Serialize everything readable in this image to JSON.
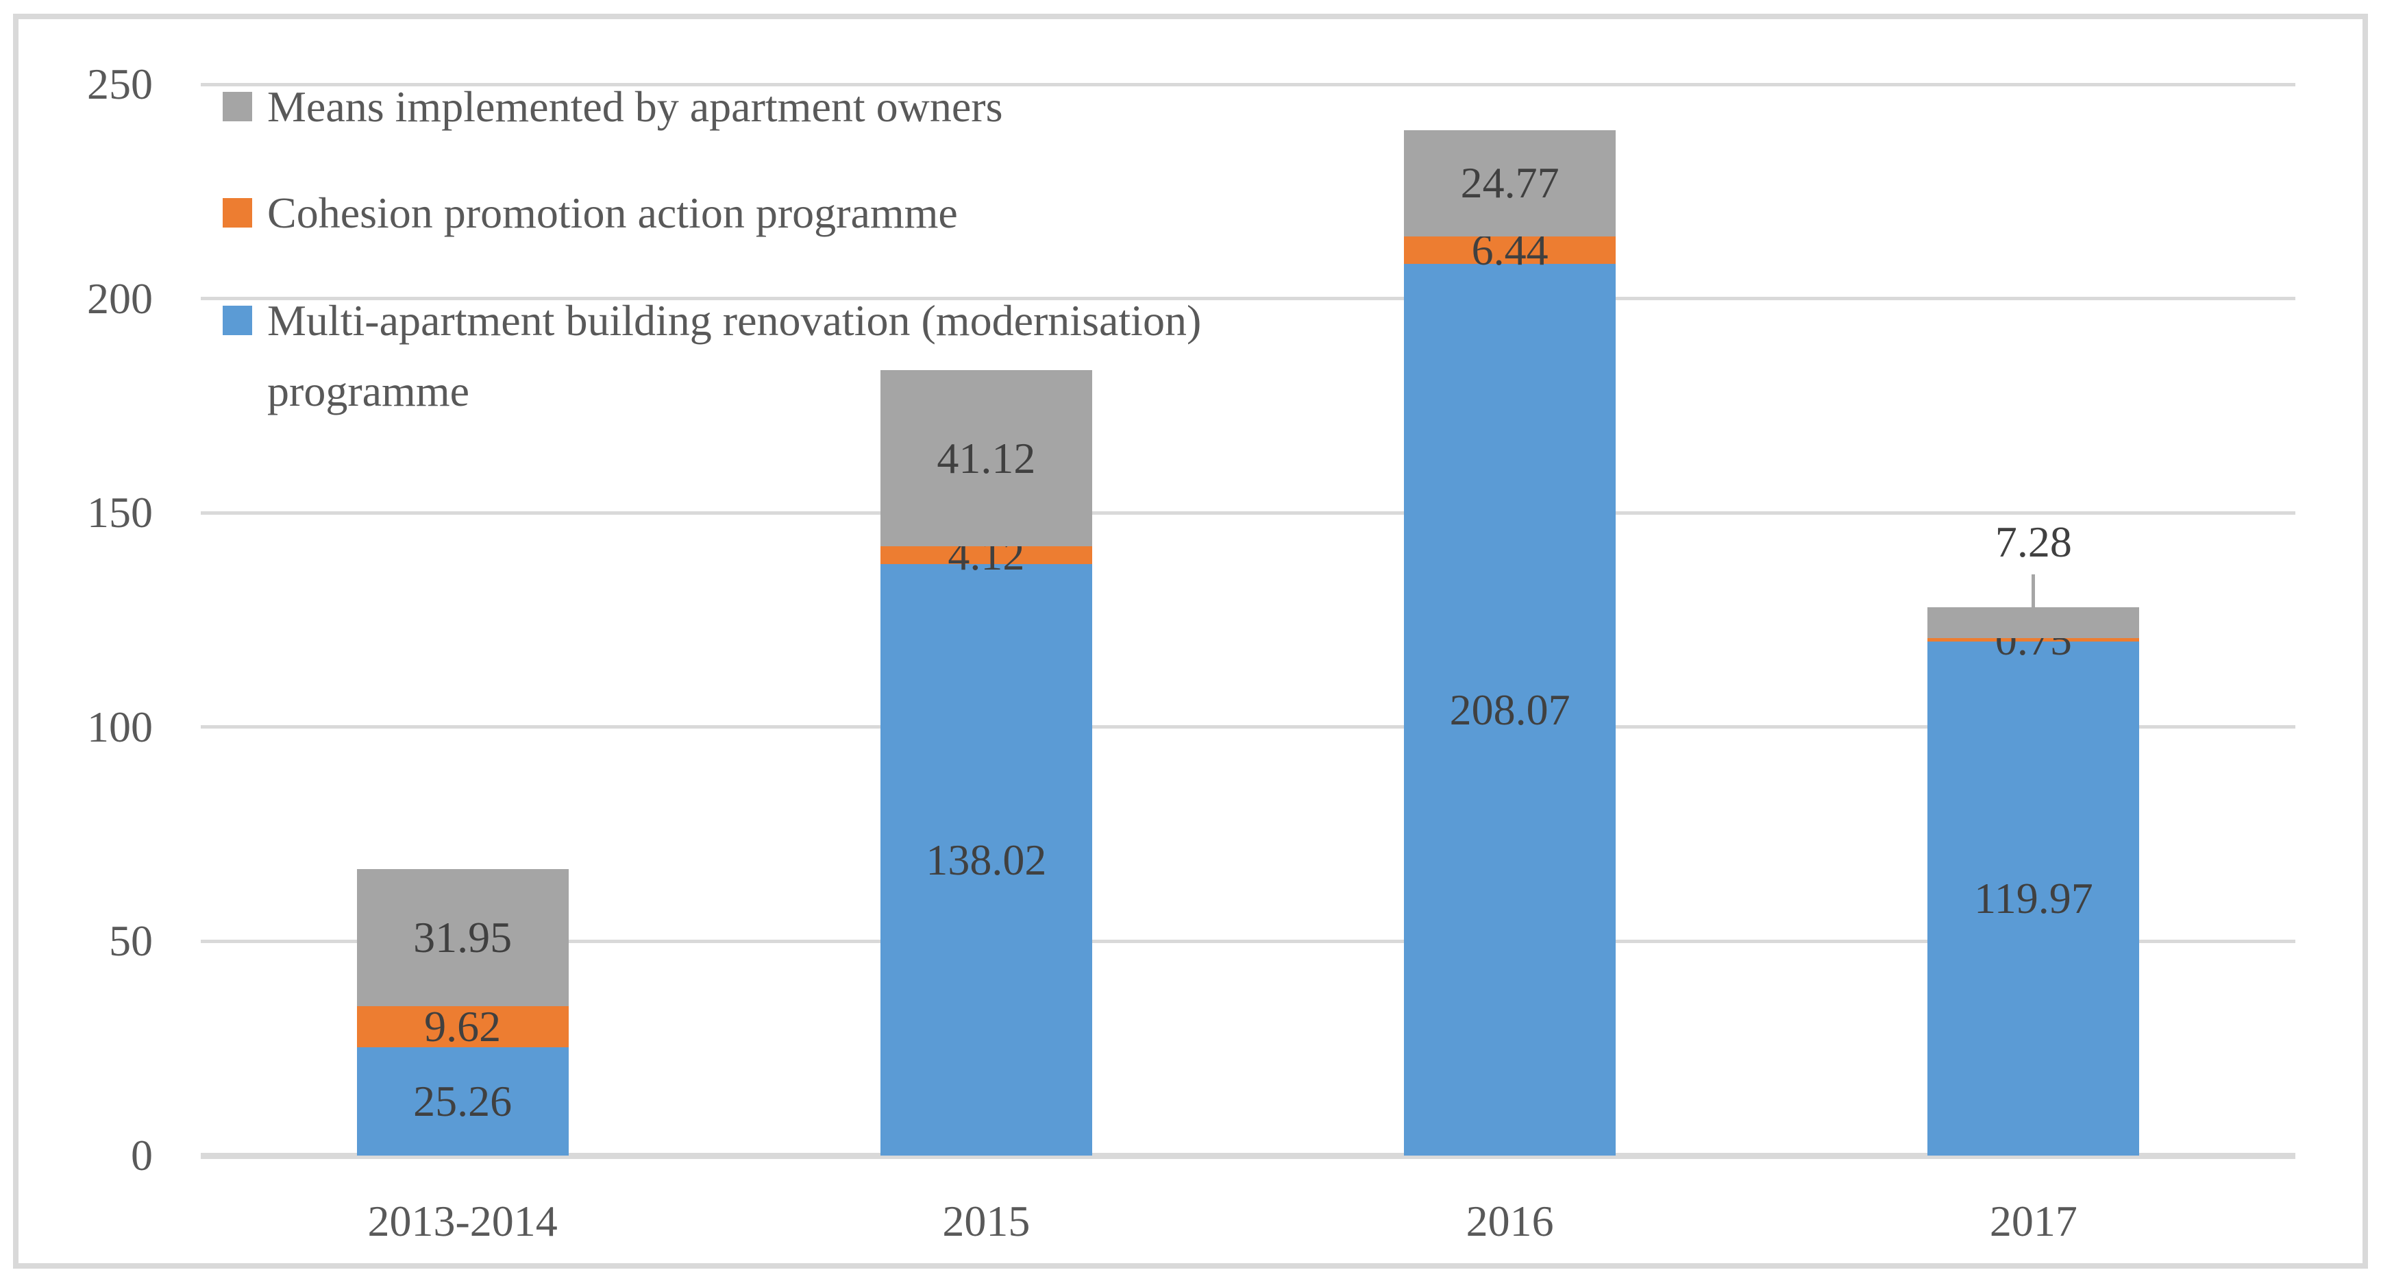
{
  "figure": {
    "background": "#FFFFFF",
    "frame_border_color": "#D9D9D9"
  },
  "chart_data": {
    "type": "bar",
    "stacked": true,
    "orientation": "vertical",
    "categories": [
      "2013-2014",
      "2015",
      "2016",
      "2017"
    ],
    "series": [
      {
        "name": "Multi-apartment building  renovation (modernisation) programme",
        "color": "#5B9BD5",
        "values": [
          25.26,
          138.02,
          208.07,
          119.97
        ]
      },
      {
        "name": "Cohesion promotion action programme",
        "color": "#ED7D31",
        "values": [
          9.62,
          4.12,
          6.44,
          0.75
        ]
      },
      {
        "name": "Means implemented by apartment owners",
        "color": "#A5A5A5",
        "values": [
          31.95,
          41.12,
          24.77,
          7.28
        ]
      }
    ],
    "data_labels": {
      "visible": true,
      "decimals": 2,
      "color": "#404040"
    },
    "ylim": [
      0,
      250
    ],
    "yticks": [
      0,
      50,
      100,
      150,
      200,
      250
    ],
    "grid": "horizontal",
    "gridline_color": "#D9D9D9",
    "axis_line_color": "#D9D9D9",
    "axis_text_color": "#595959",
    "legend_position": "top-left-inside",
    "legend": {
      "items": [
        {
          "series_index": 2,
          "lines": [
            "Means implemented by apartment owners"
          ]
        },
        {
          "series_index": 1,
          "lines": [
            "Cohesion promotion action programme"
          ]
        },
        {
          "series_index": 0,
          "lines": [
            "Multi-apartment building  renovation (modernisation)",
            "programme"
          ]
        }
      ]
    },
    "callout": {
      "category_index": 3,
      "series_index": 2,
      "label": "7.28",
      "leader_color": "#A6A6A6"
    }
  }
}
